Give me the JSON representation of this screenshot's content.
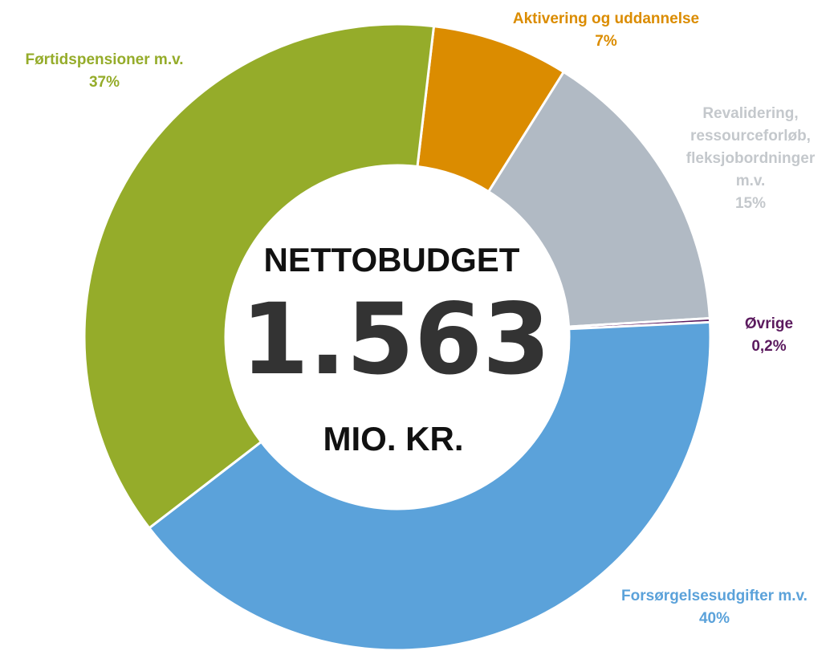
{
  "chart_data": {
    "type": "donut",
    "center_title": "NETTOBUDGET",
    "center_value": "1.563",
    "center_unit": "MIO. KR.",
    "categories": [
      "Aktivering og uddannelse",
      "Revalidering, ressourceforløb, fleksjobordninger m.v.",
      "Øvrige",
      "Forsørgelsesudgifter m.v.",
      "Førtidspensioner m.v."
    ],
    "values": [
      7,
      15,
      0.2,
      40,
      37
    ],
    "value_labels": [
      "7%",
      "15%",
      "0,2%",
      "40%",
      "37%"
    ],
    "colors": [
      "#db8c00",
      "#b1bac4",
      "#5b1a5e",
      "#5ba2da",
      "#95ac2a"
    ]
  }
}
